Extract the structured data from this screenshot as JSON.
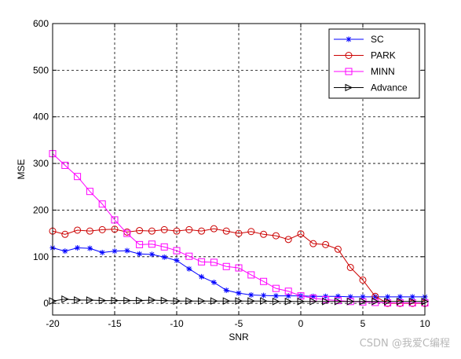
{
  "chart_data": {
    "type": "line",
    "xlabel": "SNR",
    "ylabel": "MSE",
    "xlim": [
      -20,
      10
    ],
    "ylim": [
      -25,
      600
    ],
    "x_ticks": [
      -20,
      -15,
      -10,
      -5,
      0,
      5,
      10
    ],
    "y_ticks": [
      0,
      100,
      200,
      300,
      400,
      500,
      600
    ],
    "grid": true,
    "legend_position": "top-right",
    "x": [
      -20,
      -19,
      -18,
      -17,
      -16,
      -15,
      -14,
      -13,
      -12,
      -11,
      -10,
      -9,
      -8,
      -7,
      -6,
      -5,
      -4,
      -3,
      -2,
      -1,
      0,
      1,
      2,
      3,
      4,
      5,
      6,
      7,
      8,
      9,
      10
    ],
    "series": [
      {
        "name": "SC",
        "color": "#0000ff",
        "marker": "star",
        "values": [
          119,
          112,
          119,
          118,
          109,
          112,
          113,
          106,
          105,
          99,
          92,
          74,
          57,
          45,
          28,
          22,
          18,
          17,
          16,
          16,
          16,
          15,
          15,
          15,
          14,
          14,
          14,
          14,
          14,
          14,
          14
        ]
      },
      {
        "name": "PARK",
        "color": "#cc0000",
        "marker": "circle",
        "values": [
          155,
          148,
          157,
          155,
          158,
          159,
          153,
          156,
          155,
          158,
          155,
          158,
          155,
          160,
          155,
          150,
          154,
          148,
          145,
          137,
          149,
          128,
          126,
          116,
          77,
          50,
          15,
          0,
          0,
          0,
          0
        ]
      },
      {
        "name": "MINN",
        "color": "#ff00ff",
        "marker": "square",
        "values": [
          321,
          296,
          272,
          240,
          213,
          179,
          150,
          126,
          127,
          121,
          113,
          101,
          89,
          88,
          79,
          76,
          61,
          47,
          32,
          26,
          16,
          11,
          8,
          6,
          4,
          3,
          2,
          1,
          1,
          1,
          1
        ]
      },
      {
        "name": "Advance",
        "color": "#000000",
        "marker": "triangle-right",
        "values": [
          5,
          9,
          7,
          7,
          6,
          6,
          6,
          6,
          7,
          6,
          5,
          5,
          5,
          5,
          5,
          5,
          5,
          5,
          4,
          4,
          4,
          4,
          4,
          4,
          4,
          4,
          4,
          4,
          4,
          4,
          4
        ]
      }
    ]
  },
  "watermark": "CSDN @我爱C编程"
}
